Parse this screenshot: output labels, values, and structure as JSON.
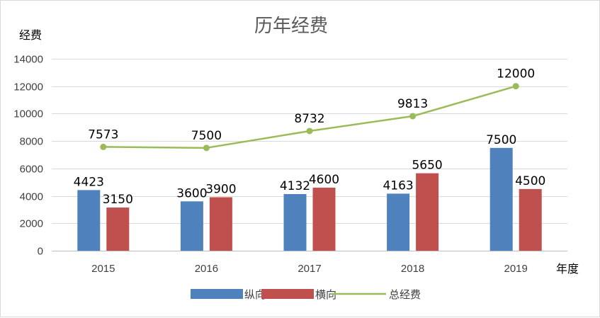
{
  "chart_data": {
    "type": "bar",
    "title": "历年经费",
    "ylabel": "经费",
    "xlabel": "年度",
    "categories": [
      "2015",
      "2016",
      "2017",
      "2018",
      "2019"
    ],
    "ylim": [
      0,
      14000
    ],
    "yticks": [
      0,
      2000,
      4000,
      6000,
      8000,
      10000,
      12000,
      14000
    ],
    "grid": true,
    "legend_position": "bottom",
    "series": [
      {
        "name": "纵向",
        "kind": "bar",
        "color": "#4f81bd",
        "values": [
          4423,
          3600,
          4132,
          4163,
          7500
        ]
      },
      {
        "name": "横向",
        "kind": "bar",
        "color": "#c0504d",
        "values": [
          3150,
          3900,
          4600,
          5650,
          4500
        ]
      },
      {
        "name": "总经费",
        "kind": "line",
        "color": "#9bbb59",
        "values": [
          7573,
          7500,
          8732,
          9813,
          12000
        ]
      }
    ]
  }
}
